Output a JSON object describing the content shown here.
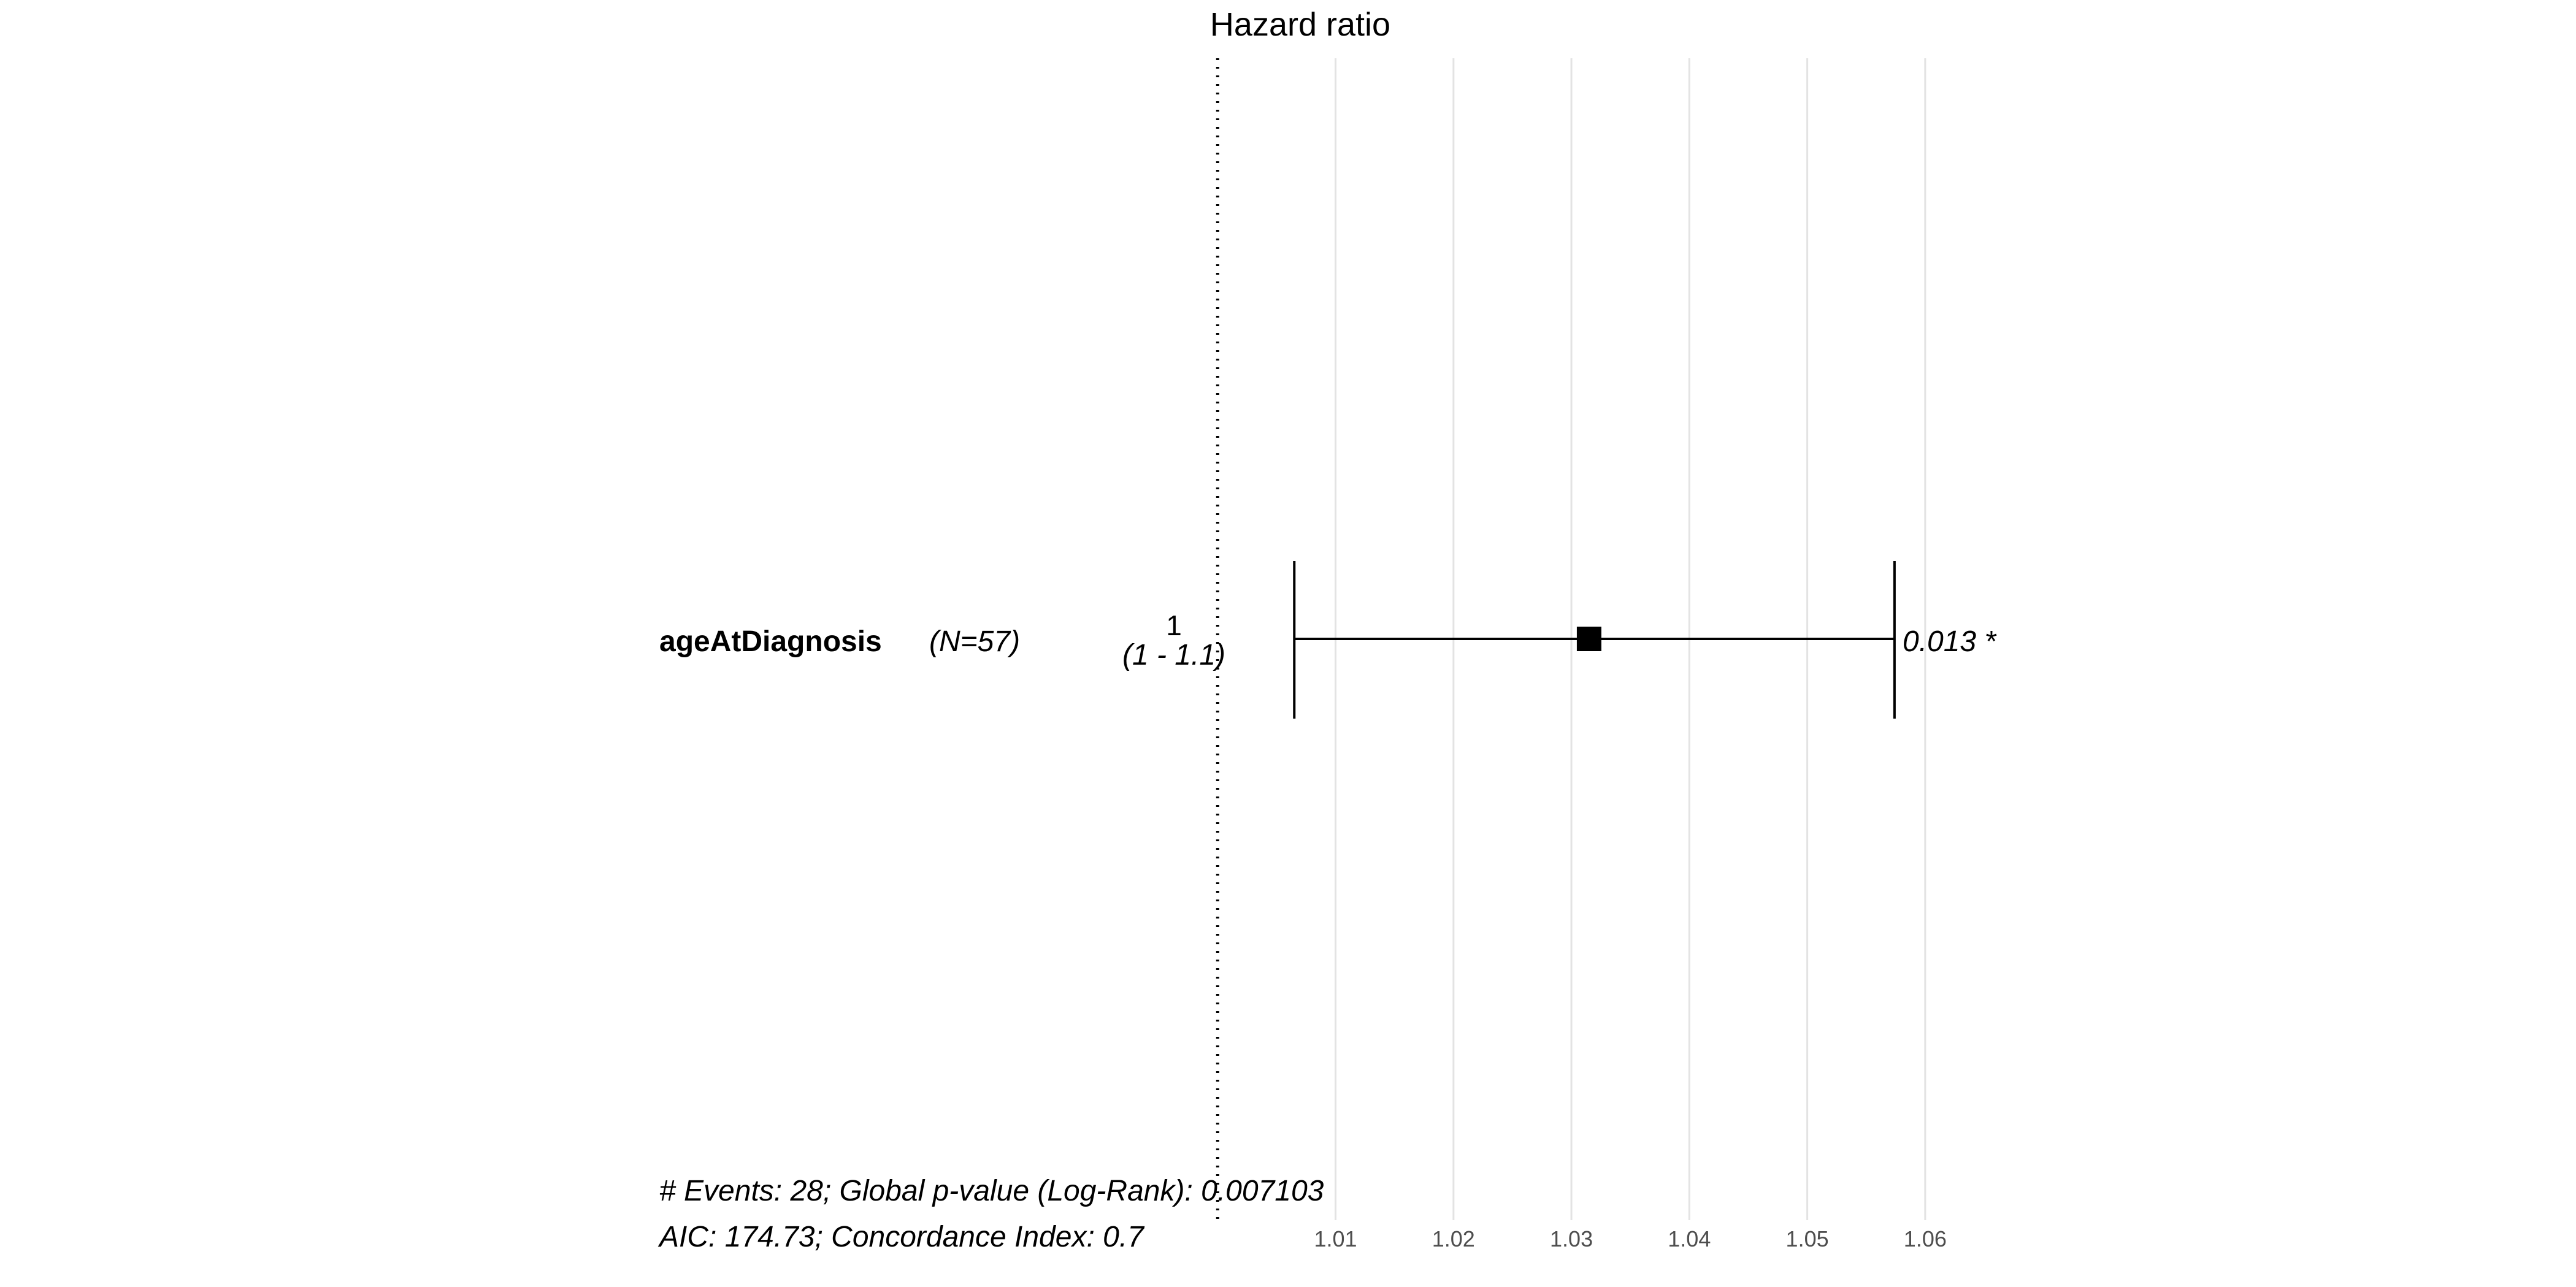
{
  "chart_data": {
    "type": "forest",
    "title": "Hazard ratio",
    "reference_value": 1,
    "xlim": [
      0.9965,
      1.0611
    ],
    "ticks": [
      1.01,
      1.02,
      1.03,
      1.04,
      1.05,
      1.06
    ],
    "tick_labels": [
      "1.01",
      "1.02",
      "1.03",
      "1.04",
      "1.05",
      "1.06"
    ],
    "rows": [
      {
        "variable": "ageAtDiagnosis",
        "n_label": "(N=57)",
        "hr_label": "1",
        "ci_label": "(1 - 1.1)",
        "p_label": "0.013 *",
        "estimate": 1.0315,
        "ci_low": 1.0065,
        "ci_high": 1.0574
      }
    ],
    "footer": [
      "# Events: 28; Global p-value (Log-Rank): 0.007103",
      "AIC: 174.73; Concordance Index: 0.7"
    ]
  }
}
